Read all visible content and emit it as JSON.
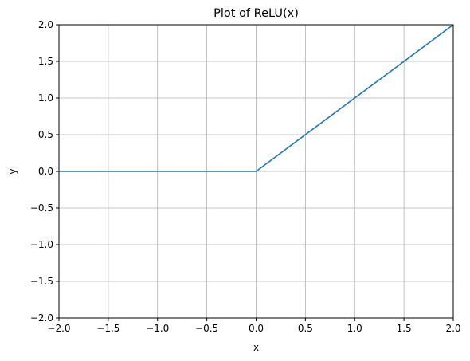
{
  "chart_data": {
    "type": "line",
    "title": "Plot of ReLU(x)",
    "xlabel": "x",
    "ylabel": "y",
    "xlim": [
      -2.0,
      2.0
    ],
    "ylim": [
      -2.0,
      2.0
    ],
    "grid": true,
    "xticks": [
      -2.0,
      -1.5,
      -1.0,
      -0.5,
      0.0,
      0.5,
      1.0,
      1.5,
      2.0
    ],
    "yticks": [
      -2.0,
      -1.5,
      -1.0,
      -0.5,
      0.0,
      0.5,
      1.0,
      1.5,
      2.0
    ],
    "xtick_labels": [
      "−2.0",
      "−1.5",
      "−1.0",
      "−0.5",
      "0.0",
      "0.5",
      "1.0",
      "1.5",
      "2.0"
    ],
    "ytick_labels": [
      "−2.0",
      "−1.5",
      "−1.0",
      "−0.5",
      "0.0",
      "0.5",
      "1.0",
      "1.5",
      "2.0"
    ],
    "series": [
      {
        "color": "#1f77b4",
        "x": [
          -2.0,
          0.0,
          2.0
        ],
        "y": [
          0.0,
          0.0,
          2.0
        ]
      }
    ]
  }
}
